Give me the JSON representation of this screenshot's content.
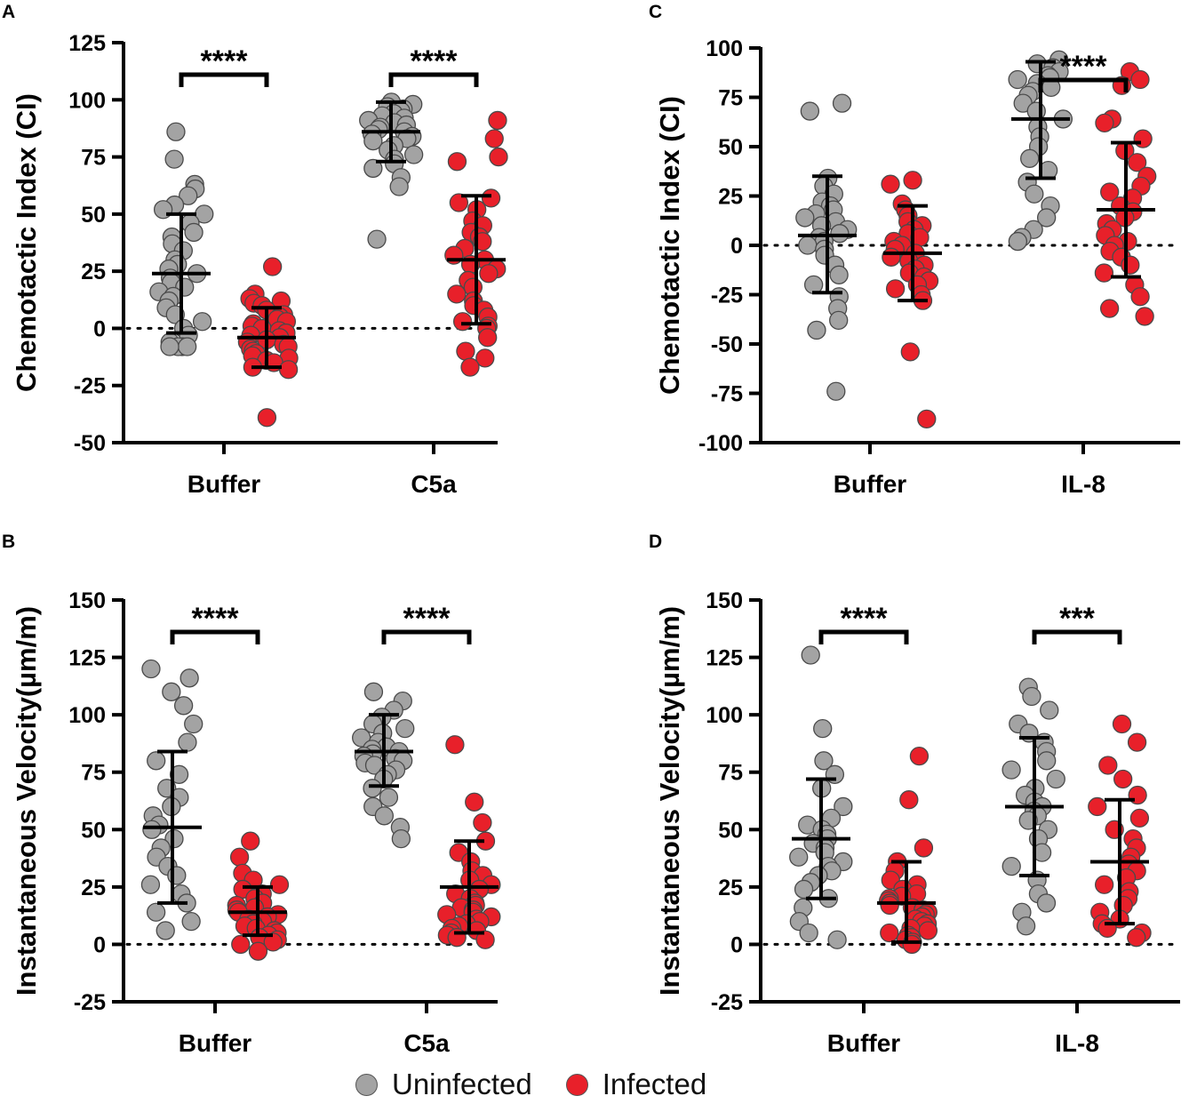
{
  "legend": {
    "uninfected": {
      "label": "Uninfected",
      "color": "#a3a3a3"
    },
    "infected": {
      "label": "Infected",
      "color": "#e8202a"
    }
  },
  "chart_data": [
    {
      "panel": "A",
      "type": "scatter",
      "ylabel": "Chemotactic Index (CI)",
      "categories": [
        "Buffer",
        "C5a"
      ],
      "ylim": [
        -50,
        125
      ],
      "yticks": [
        -50,
        -25,
        0,
        25,
        50,
        75,
        100,
        125
      ],
      "reference_line": 0,
      "groups": [
        {
          "category": "Buffer",
          "series": "Uninfected",
          "mean": 24,
          "sd_low": -2,
          "sd_high": 50,
          "points": [
            86,
            74,
            63,
            61,
            58,
            54,
            52,
            50,
            46,
            42,
            40,
            37,
            34,
            30,
            28,
            26,
            24,
            22,
            20,
            18,
            16,
            14,
            12,
            9,
            6,
            3,
            0,
            -3,
            -6,
            -8,
            -8,
            -8,
            -8
          ]
        },
        {
          "category": "Buffer",
          "series": "Infected",
          "mean": -4,
          "sd_low": -17,
          "sd_high": 9,
          "points": [
            27,
            15,
            13,
            12,
            11,
            10,
            8,
            6,
            5,
            4,
            3,
            2,
            1,
            0,
            -1,
            -2,
            -3,
            -4,
            -5,
            -6,
            -7,
            -8,
            -9,
            -10,
            -11,
            -12,
            -13,
            -14,
            -15,
            -17,
            -18,
            -39
          ]
        },
        {
          "category": "C5a",
          "series": "Uninfected",
          "mean": 86,
          "sd_low": 73,
          "sd_high": 99,
          "points": [
            99,
            98,
            97,
            96,
            95,
            94,
            93,
            92,
            91,
            90,
            89,
            88,
            87,
            86,
            85,
            84,
            83,
            82,
            80,
            78,
            76,
            74,
            72,
            70,
            66,
            62,
            39
          ]
        },
        {
          "category": "C5a",
          "series": "Infected",
          "mean": 30,
          "sd_low": 2,
          "sd_high": 58,
          "points": [
            91,
            83,
            75,
            73,
            57,
            55,
            52,
            47,
            45,
            42,
            40,
            38,
            35,
            32,
            30,
            28,
            26,
            24,
            21,
            18,
            15,
            12,
            10,
            8,
            5,
            3,
            1,
            0,
            -4,
            -10,
            -13,
            -17
          ]
        }
      ],
      "significance": [
        {
          "category": "Buffer",
          "label": "****"
        },
        {
          "category": "C5a",
          "label": "****"
        }
      ]
    },
    {
      "panel": "C",
      "type": "scatter",
      "ylabel": "Chemotactic Index (CI)",
      "categories": [
        "Buffer",
        "IL-8"
      ],
      "ylim": [
        -100,
        100
      ],
      "yticks": [
        -100,
        -75,
        -50,
        -25,
        0,
        25,
        50,
        75,
        100
      ],
      "reference_line": 0,
      "groups": [
        {
          "category": "Buffer",
          "series": "Uninfected",
          "mean": 5,
          "sd_low": -24,
          "sd_high": 35,
          "points": [
            72,
            68,
            34,
            30,
            26,
            22,
            20,
            18,
            16,
            14,
            12,
            10,
            8,
            6,
            4,
            2,
            0,
            -2,
            -5,
            -10,
            -15,
            -20,
            -26,
            -32,
            -38,
            -43,
            -74
          ]
        },
        {
          "category": "Buffer",
          "series": "Infected",
          "mean": -4,
          "sd_low": -28,
          "sd_high": 20,
          "points": [
            33,
            31,
            21,
            18,
            15,
            12,
            10,
            8,
            6,
            4,
            2,
            0,
            -2,
            -4,
            -6,
            -8,
            -10,
            -12,
            -14,
            -16,
            -18,
            -20,
            -22,
            -25,
            -28,
            -54,
            -88
          ]
        },
        {
          "category": "IL-8",
          "series": "Uninfected",
          "mean": 64,
          "sd_low": 34,
          "sd_high": 93,
          "points": [
            94,
            92,
            90,
            88,
            86,
            85,
            84,
            82,
            80,
            78,
            76,
            72,
            68,
            64,
            60,
            55,
            50,
            44,
            38,
            32,
            26,
            20,
            14,
            8,
            4,
            2
          ]
        },
        {
          "category": "IL-8",
          "series": "Infected",
          "mean": 18,
          "sd_low": -16,
          "sd_high": 52,
          "points": [
            88,
            84,
            81,
            64,
            62,
            54,
            48,
            42,
            35,
            30,
            27,
            24,
            20,
            17,
            14,
            11,
            8,
            5,
            2,
            0,
            -3,
            -6,
            -10,
            -14,
            -20,
            -26,
            -32,
            -36
          ]
        }
      ],
      "significance": [
        {
          "category": "IL-8",
          "label": "****"
        }
      ]
    },
    {
      "panel": "B",
      "type": "scatter",
      "ylabel": "Instantaneous Velocity(µm/m)",
      "categories": [
        "Buffer",
        "C5a"
      ],
      "ylim": [
        -25,
        150
      ],
      "yticks": [
        -25,
        0,
        25,
        50,
        75,
        100,
        125,
        150
      ],
      "reference_line": 0,
      "groups": [
        {
          "category": "Buffer",
          "series": "Uninfected",
          "mean": 51,
          "sd_low": 18,
          "sd_high": 84,
          "points": [
            120,
            116,
            110,
            104,
            96,
            88,
            80,
            74,
            68,
            64,
            60,
            56,
            52,
            50,
            46,
            42,
            38,
            34,
            30,
            26,
            22,
            18,
            14,
            10,
            6
          ]
        },
        {
          "category": "Buffer",
          "series": "Infected",
          "mean": 14,
          "sd_low": 4,
          "sd_high": 25,
          "points": [
            45,
            38,
            31,
            28,
            26,
            24,
            22,
            20,
            18,
            17,
            16,
            15,
            14,
            13,
            12,
            11,
            10,
            9,
            8,
            7,
            6,
            5,
            4,
            3,
            2,
            1,
            0,
            -3
          ]
        },
        {
          "category": "C5a",
          "series": "Uninfected",
          "mean": 84,
          "sd_low": 69,
          "sd_high": 100,
          "points": [
            110,
            106,
            102,
            99,
            96,
            94,
            92,
            90,
            88,
            86,
            85,
            84,
            83,
            82,
            81,
            80,
            79,
            78,
            76,
            74,
            72,
            68,
            64,
            60,
            56,
            51,
            46
          ]
        },
        {
          "category": "C5a",
          "series": "Infected",
          "mean": 25,
          "sd_low": 5,
          "sd_high": 45,
          "points": [
            87,
            62,
            53,
            45,
            40,
            36,
            32,
            30,
            28,
            26,
            24,
            22,
            20,
            18,
            17,
            16,
            15,
            14,
            13,
            12,
            11,
            10,
            9,
            8,
            7,
            6,
            5,
            4,
            3,
            2
          ]
        }
      ],
      "significance": [
        {
          "category": "Buffer",
          "label": "****"
        },
        {
          "category": "C5a",
          "label": "****"
        }
      ]
    },
    {
      "panel": "D",
      "type": "scatter",
      "ylabel": "Instantaneous Velocity(µm/m)",
      "categories": [
        "Buffer",
        "IL-8"
      ],
      "ylim": [
        -25,
        150
      ],
      "yticks": [
        -25,
        0,
        25,
        50,
        75,
        100,
        125,
        150
      ],
      "reference_line": 0,
      "groups": [
        {
          "category": "Buffer",
          "series": "Uninfected",
          "mean": 46,
          "sd_low": 20,
          "sd_high": 72,
          "points": [
            126,
            94,
            80,
            74,
            68,
            60,
            55,
            52,
            50,
            48,
            46,
            44,
            42,
            40,
            38,
            36,
            34,
            32,
            30,
            27,
            24,
            20,
            16,
            10,
            5,
            2
          ]
        },
        {
          "category": "Buffer",
          "series": "Infected",
          "mean": 18,
          "sd_low": 1,
          "sd_high": 36,
          "points": [
            82,
            63,
            42,
            36,
            32,
            28,
            26,
            24,
            22,
            21,
            20,
            19,
            18,
            17,
            16,
            15,
            14,
            13,
            12,
            11,
            10,
            9,
            8,
            7,
            6,
            5,
            4,
            3,
            2,
            1,
            0
          ]
        },
        {
          "category": "IL-8",
          "series": "Uninfected",
          "mean": 60,
          "sd_low": 30,
          "sd_high": 90,
          "points": [
            112,
            108,
            102,
            96,
            92,
            88,
            84,
            80,
            76,
            72,
            68,
            65,
            62,
            60,
            58,
            56,
            54,
            50,
            46,
            40,
            34,
            28,
            22,
            18,
            14,
            8
          ]
        },
        {
          "category": "IL-8",
          "series": "Infected",
          "mean": 36,
          "sd_low": 9,
          "sd_high": 63,
          "points": [
            96,
            88,
            78,
            72,
            65,
            60,
            55,
            50,
            46,
            42,
            38,
            35,
            32,
            29,
            26,
            23,
            20,
            17,
            14,
            11,
            9,
            7,
            5,
            3
          ]
        }
      ],
      "significance": [
        {
          "category": "Buffer",
          "label": "****"
        },
        {
          "category": "IL-8",
          "label": "***"
        }
      ]
    }
  ]
}
